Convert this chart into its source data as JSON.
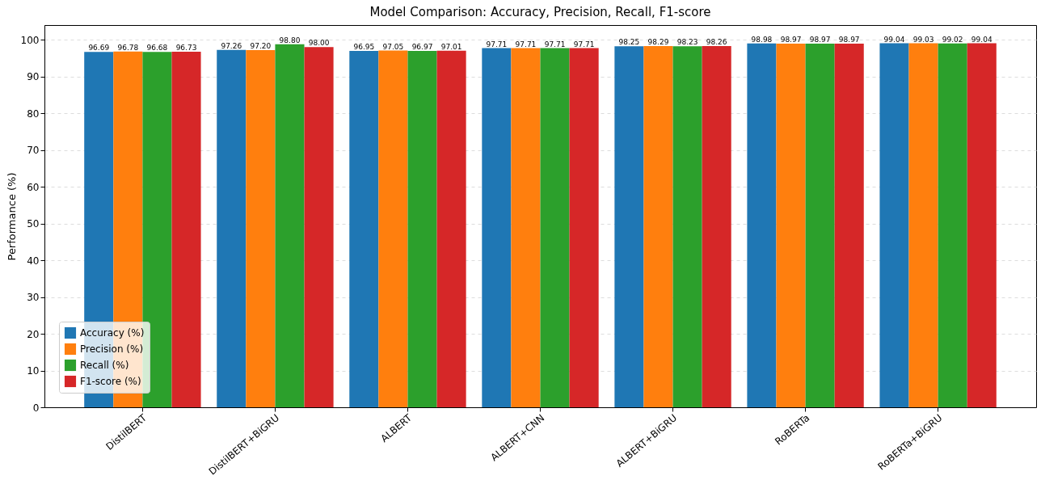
{
  "chart_data": {
    "type": "bar",
    "title": "Model Comparison: Accuracy, Precision, Recall, F1-score",
    "ylabel": "Performance (%)",
    "categories": [
      "DistilBERT",
      "DistilBERT+BiGRU",
      "ALBERT",
      "ALBERT+CNN",
      "ALBERT+BiGRU",
      "RoBERTa",
      "RoBERTa+BiGRU"
    ],
    "series": [
      {
        "name": "Accuracy (%)",
        "color": "#1f77b4",
        "values": [
          96.69,
          97.26,
          96.95,
          97.71,
          98.25,
          98.98,
          99.04
        ],
        "value_labels": [
          "96.69",
          "97.26",
          "96.95",
          "97.71",
          "98.25",
          "98.98",
          "99.04"
        ]
      },
      {
        "name": "Precision (%)",
        "color": "#ff7f0e",
        "values": [
          96.78,
          97.2,
          97.05,
          97.71,
          98.29,
          98.97,
          99.03
        ],
        "value_labels": [
          "96.78",
          "97.20",
          "97.05",
          "97.71",
          "98.29",
          "98.97",
          "99.03"
        ]
      },
      {
        "name": "Recall (%)",
        "color": "#2ca02c",
        "values": [
          96.68,
          98.8,
          96.97,
          97.71,
          98.23,
          98.97,
          99.02
        ],
        "value_labels": [
          "96.68",
          "98.80",
          "96.97",
          "97.71",
          "98.23",
          "98.97",
          "99.02"
        ]
      },
      {
        "name": "F1-score (%)",
        "color": "#d62728",
        "values": [
          96.73,
          98.0,
          97.01,
          97.71,
          98.26,
          98.97,
          99.04
        ],
        "value_labels": [
          "96.73",
          "98.00",
          "97.01",
          "97.71",
          "98.26",
          "98.97",
          "99.04"
        ]
      }
    ],
    "ylim": [
      0,
      104
    ],
    "yticks": [
      0,
      10,
      20,
      30,
      40,
      50,
      60,
      70,
      80,
      90,
      100
    ],
    "grid": "y",
    "legend": "bottom left"
  }
}
